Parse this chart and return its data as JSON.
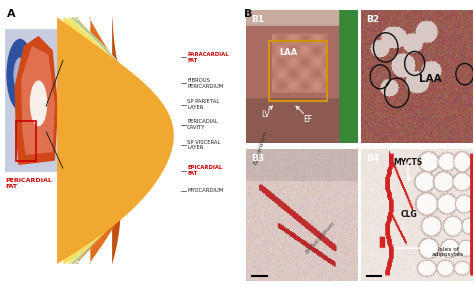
{
  "fig_width": 4.74,
  "fig_height": 2.87,
  "dpi": 100,
  "bg_color": "#ffffff",
  "panel_A_label": "A",
  "panel_B_label": "B",
  "pericardial_fat_label": "PERICARDIAL\nFAT",
  "layer_colors": [
    "#f0a830",
    "#f5e060",
    "#f0d878",
    "#b8c8a0",
    "#c8d8b0",
    "#a8b898",
    "#f09830",
    "#e07828",
    "#c86018"
  ],
  "layer_labels": [
    {
      "text": "PARACARDIAL\nFAT",
      "color": "#cc0000"
    },
    {
      "text": "FIBROUS\nPERICARDIUM",
      "color": "#222222"
    },
    {
      "text": "SP PARIETAL\nLAYER",
      "color": "#222222"
    },
    {
      "text": "PERICADIAL\nCAVITY",
      "color": "#222222"
    },
    {
      "text": "SP VISCERAL\nLAYER",
      "color": "#222222"
    },
    {
      "text": "EPICARDIAL\nFAT",
      "color": "#cc0000"
    },
    {
      "text": "MYOCARDIUM",
      "color": "#222222"
    }
  ]
}
